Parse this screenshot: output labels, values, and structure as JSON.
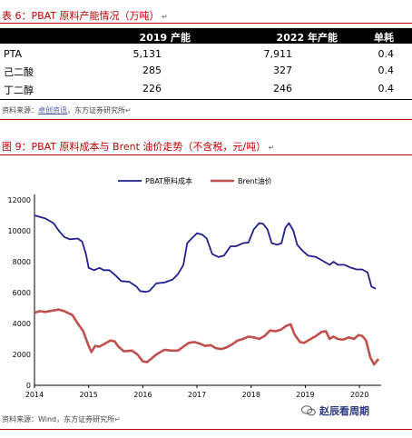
{
  "table": {
    "title": "表 6：PBAT 原料产能情况（万吨）",
    "headers": [
      "",
      "2019 产能",
      "2022 年产能",
      "单耗"
    ],
    "rows": [
      {
        "name": "PTA",
        "cap2019": "5,131",
        "cap2022": "7,911",
        "usage": "0.4"
      },
      {
        "name": "己二酸",
        "cap2019": "285",
        "cap2022": "327",
        "usage": "0.4"
      },
      {
        "name": "丁二醇",
        "cap2019": "226",
        "cap2022": "246",
        "usage": "0.4"
      }
    ],
    "source_label": "资料来源：",
    "source_link": "卓创资讯",
    "source_rest": "，东方证券研究所"
  },
  "figure": {
    "title": "图 9：PBAT 原料成本与 Brent 油价走势（不含税，元/吨）",
    "source": "资料来源：Wind，东方证券研究所",
    "watermark": "赵辰看周期"
  },
  "colors": {
    "red": "#c00000",
    "pbat": "#1f1f8f",
    "brent": "#c0504d"
  },
  "chart_data": {
    "type": "line",
    "title": "",
    "xlabel": "",
    "ylabel": "",
    "xlim": [
      2014,
      2020.4
    ],
    "ylim": [
      0,
      12000
    ],
    "yticks": [
      0,
      2000,
      4000,
      6000,
      8000,
      10000,
      12000
    ],
    "xticks": [
      2014,
      2015,
      2016,
      2017,
      2018,
      2019,
      2020
    ],
    "legend_position": "top",
    "series": [
      {
        "name": "PBAT原料成本",
        "color": "#1f1f8f",
        "points": [
          [
            2014.0,
            11000
          ],
          [
            2014.2,
            10800
          ],
          [
            2014.35,
            10500
          ],
          [
            2014.45,
            10000
          ],
          [
            2014.55,
            9600
          ],
          [
            2014.65,
            9450
          ],
          [
            2014.8,
            9500
          ],
          [
            2014.88,
            9300
          ],
          [
            2014.95,
            8500
          ],
          [
            2015.0,
            7600
          ],
          [
            2015.1,
            7450
          ],
          [
            2015.2,
            7600
          ],
          [
            2015.28,
            7450
          ],
          [
            2015.38,
            7450
          ],
          [
            2015.5,
            7100
          ],
          [
            2015.6,
            6750
          ],
          [
            2015.75,
            6700
          ],
          [
            2015.88,
            6400
          ],
          [
            2015.95,
            6100
          ],
          [
            2016.05,
            6050
          ],
          [
            2016.12,
            6100
          ],
          [
            2016.25,
            6600
          ],
          [
            2016.4,
            6650
          ],
          [
            2016.55,
            6850
          ],
          [
            2016.65,
            7200
          ],
          [
            2016.75,
            7800
          ],
          [
            2016.82,
            9200
          ],
          [
            2016.9,
            9500
          ],
          [
            2017.0,
            9850
          ],
          [
            2017.1,
            9750
          ],
          [
            2017.18,
            9500
          ],
          [
            2017.28,
            8500
          ],
          [
            2017.4,
            8300
          ],
          [
            2017.5,
            8400
          ],
          [
            2017.62,
            9000
          ],
          [
            2017.72,
            9000
          ],
          [
            2017.85,
            9200
          ],
          [
            2017.95,
            9250
          ],
          [
            2018.05,
            10100
          ],
          [
            2018.15,
            10500
          ],
          [
            2018.22,
            10450
          ],
          [
            2018.3,
            10100
          ],
          [
            2018.38,
            9200
          ],
          [
            2018.48,
            9100
          ],
          [
            2018.56,
            9200
          ],
          [
            2018.63,
            10200
          ],
          [
            2018.7,
            10500
          ],
          [
            2018.78,
            10000
          ],
          [
            2018.85,
            9100
          ],
          [
            2018.95,
            8700
          ],
          [
            2019.05,
            8400
          ],
          [
            2019.2,
            8300
          ],
          [
            2019.35,
            8000
          ],
          [
            2019.45,
            7800
          ],
          [
            2019.52,
            8000
          ],
          [
            2019.6,
            7800
          ],
          [
            2019.72,
            7800
          ],
          [
            2019.85,
            7600
          ],
          [
            2019.95,
            7500
          ],
          [
            2020.05,
            7500
          ],
          [
            2020.15,
            7300
          ],
          [
            2020.22,
            6400
          ],
          [
            2020.3,
            6250
          ]
        ]
      },
      {
        "name": "Brent油价",
        "color": "#c0504d",
        "points": [
          [
            2014.0,
            4700
          ],
          [
            2014.1,
            4800
          ],
          [
            2014.2,
            4750
          ],
          [
            2014.35,
            4850
          ],
          [
            2014.45,
            4900
          ],
          [
            2014.55,
            4800
          ],
          [
            2014.7,
            4550
          ],
          [
            2014.8,
            4000
          ],
          [
            2014.9,
            3500
          ],
          [
            2015.0,
            2550
          ],
          [
            2015.05,
            2150
          ],
          [
            2015.12,
            2550
          ],
          [
            2015.2,
            2500
          ],
          [
            2015.3,
            2700
          ],
          [
            2015.4,
            2900
          ],
          [
            2015.48,
            2850
          ],
          [
            2015.55,
            2500
          ],
          [
            2015.65,
            2200
          ],
          [
            2015.8,
            2250
          ],
          [
            2015.9,
            2000
          ],
          [
            2016.0,
            1550
          ],
          [
            2016.08,
            1500
          ],
          [
            2016.15,
            1700
          ],
          [
            2016.25,
            2000
          ],
          [
            2016.4,
            2300
          ],
          [
            2016.52,
            2250
          ],
          [
            2016.65,
            2250
          ],
          [
            2016.75,
            2500
          ],
          [
            2016.85,
            2750
          ],
          [
            2016.95,
            2800
          ],
          [
            2017.05,
            2700
          ],
          [
            2017.15,
            2550
          ],
          [
            2017.25,
            2600
          ],
          [
            2017.35,
            2400
          ],
          [
            2017.45,
            2350
          ],
          [
            2017.55,
            2450
          ],
          [
            2017.65,
            2650
          ],
          [
            2017.75,
            2900
          ],
          [
            2017.85,
            3000
          ],
          [
            2017.95,
            3150
          ],
          [
            2018.05,
            3100
          ],
          [
            2018.15,
            3000
          ],
          [
            2018.25,
            3200
          ],
          [
            2018.35,
            3550
          ],
          [
            2018.45,
            3500
          ],
          [
            2018.55,
            3600
          ],
          [
            2018.65,
            3850
          ],
          [
            2018.73,
            3950
          ],
          [
            2018.8,
            3300
          ],
          [
            2018.9,
            2800
          ],
          [
            2018.98,
            2750
          ],
          [
            2019.1,
            3000
          ],
          [
            2019.2,
            3200
          ],
          [
            2019.3,
            3450
          ],
          [
            2019.38,
            3500
          ],
          [
            2019.45,
            3000
          ],
          [
            2019.52,
            3150
          ],
          [
            2019.6,
            3000
          ],
          [
            2019.7,
            2950
          ],
          [
            2019.8,
            3100
          ],
          [
            2019.9,
            3000
          ],
          [
            2019.98,
            3250
          ],
          [
            2020.05,
            3200
          ],
          [
            2020.12,
            2900
          ],
          [
            2020.2,
            1800
          ],
          [
            2020.27,
            1350
          ],
          [
            2020.35,
            1700
          ]
        ]
      }
    ]
  }
}
